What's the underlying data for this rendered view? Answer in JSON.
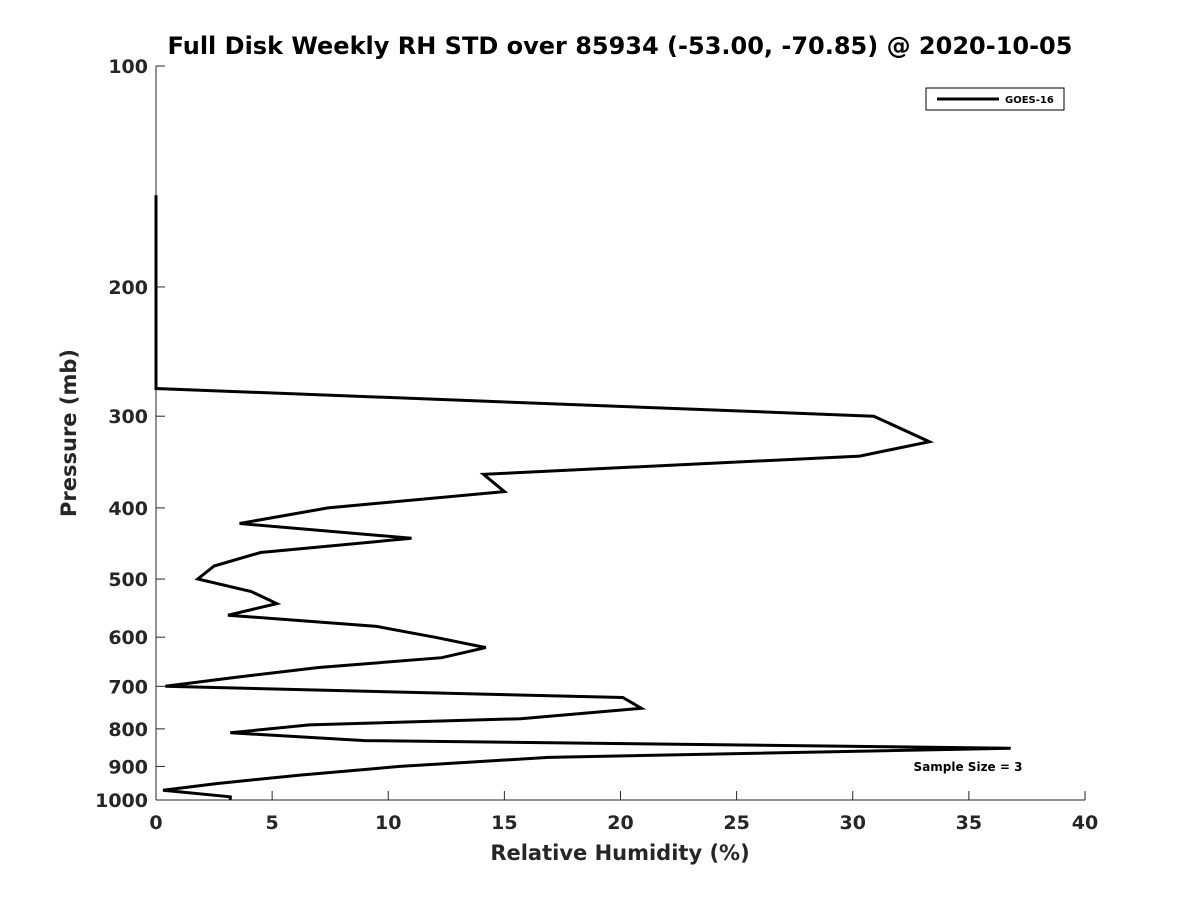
{
  "chart_data": {
    "type": "line",
    "title": "Full Disk Weekly RH STD over 85934 (-53.00, -70.85) @ 2020-10-05",
    "xlabel": "Relative Humidity (%)",
    "ylabel": "Pressure (mb)",
    "xlim": [
      0,
      40
    ],
    "ylim": [
      100,
      1000
    ],
    "yscale": "log",
    "y_reversed": true,
    "grid": false,
    "legend_position": "top-right",
    "x_ticks": [
      "0",
      "5",
      "10",
      "15",
      "20",
      "25",
      "30",
      "35",
      "40"
    ],
    "y_ticks": [
      "100",
      "200",
      "300",
      "400",
      "500",
      "600",
      "700",
      "800",
      "900",
      "1000"
    ],
    "series": [
      {
        "name": "GOES-16",
        "color": "#000000",
        "points": [
          {
            "x": 0.0,
            "y": 150
          },
          {
            "x": 0.0,
            "y": 200
          },
          {
            "x": 0.0,
            "y": 275
          },
          {
            "x": 30.9,
            "y": 300
          },
          {
            "x": 33.3,
            "y": 325
          },
          {
            "x": 30.3,
            "y": 340
          },
          {
            "x": 14.1,
            "y": 360
          },
          {
            "x": 15.0,
            "y": 380
          },
          {
            "x": 7.4,
            "y": 400
          },
          {
            "x": 3.6,
            "y": 420
          },
          {
            "x": 11.0,
            "y": 440
          },
          {
            "x": 4.5,
            "y": 460
          },
          {
            "x": 2.5,
            "y": 480
          },
          {
            "x": 1.8,
            "y": 500
          },
          {
            "x": 4.1,
            "y": 520
          },
          {
            "x": 5.2,
            "y": 540
          },
          {
            "x": 3.1,
            "y": 560
          },
          {
            "x": 9.5,
            "y": 580
          },
          {
            "x": 12.0,
            "y": 600
          },
          {
            "x": 14.2,
            "y": 620
          },
          {
            "x": 12.3,
            "y": 640
          },
          {
            "x": 7.0,
            "y": 660
          },
          {
            "x": 3.5,
            "y": 680
          },
          {
            "x": 0.4,
            "y": 700
          },
          {
            "x": 20.1,
            "y": 725
          },
          {
            "x": 20.9,
            "y": 750
          },
          {
            "x": 15.7,
            "y": 775
          },
          {
            "x": 6.6,
            "y": 790
          },
          {
            "x": 3.2,
            "y": 810
          },
          {
            "x": 9.0,
            "y": 830
          },
          {
            "x": 36.8,
            "y": 850
          },
          {
            "x": 16.9,
            "y": 875
          },
          {
            "x": 10.5,
            "y": 900
          },
          {
            "x": 6.2,
            "y": 925
          },
          {
            "x": 2.6,
            "y": 950
          },
          {
            "x": 0.3,
            "y": 970
          },
          {
            "x": 3.2,
            "y": 990
          },
          {
            "x": 3.2,
            "y": 1000
          }
        ]
      }
    ],
    "annotations": [
      "Sample Size = 3"
    ]
  }
}
